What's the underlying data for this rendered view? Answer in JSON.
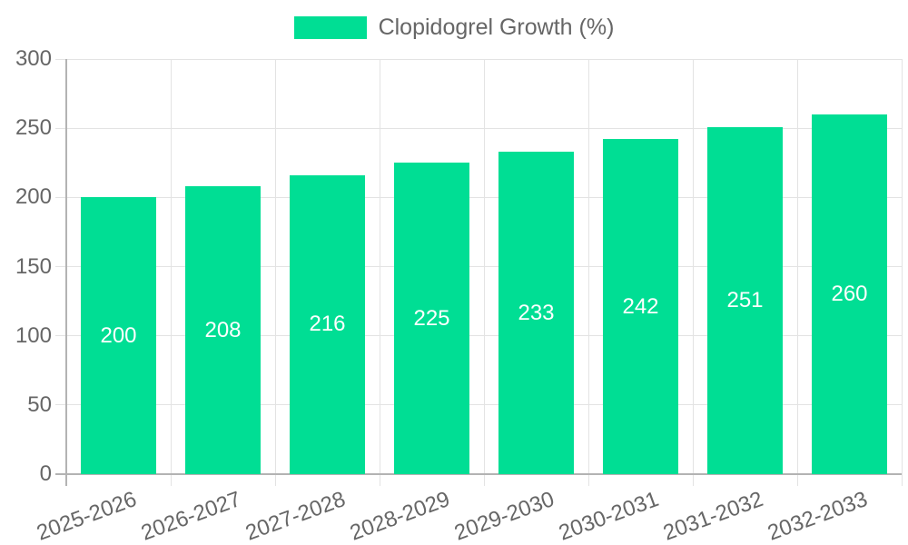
{
  "legend": {
    "label": "Clopidogrel Growth (%)"
  },
  "chart_data": {
    "type": "bar",
    "title": "Clopidogrel Growth (%)",
    "categories": [
      "2025-2026",
      "2026-2027",
      "2027-2028",
      "2028-2029",
      "2029-2030",
      "2030-2031",
      "2031-2032",
      "2032-2033"
    ],
    "series": [
      {
        "name": "Clopidogrel Growth (%)",
        "values": [
          200,
          208,
          216,
          225,
          233,
          242,
          251,
          260
        ]
      }
    ],
    "xlabel": "",
    "ylabel": "",
    "ylim": [
      0,
      300
    ],
    "yticks": [
      0,
      50,
      100,
      150,
      200,
      250,
      300
    ],
    "grid": true,
    "legend_position": "top-center",
    "value_labels_position": "center",
    "colors": {
      "bar": "#00de94",
      "grid": "#e3e3e3",
      "axis": "#b3b3b3",
      "text": "#666666",
      "value_label": "#ffffff",
      "background": "#ffffff"
    }
  }
}
